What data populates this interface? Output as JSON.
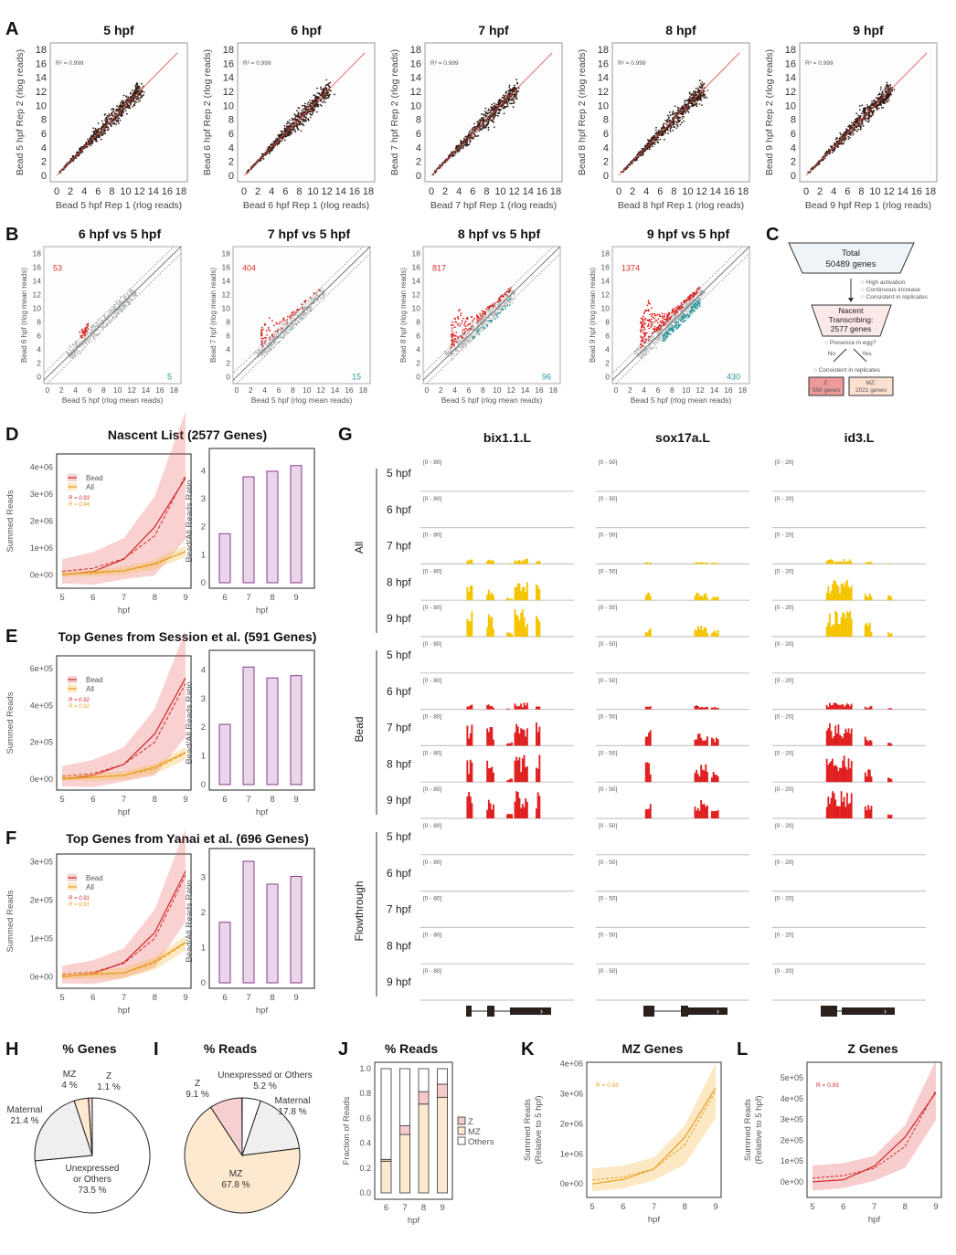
{
  "panels": {
    "A": "A",
    "B": "B",
    "C": "C",
    "D": "D",
    "E": "E",
    "F": "F",
    "G": "G",
    "H": "H",
    "I": "I",
    "J": "J",
    "K": "K",
    "L": "L"
  },
  "chart_data": [
    {
      "id": "A",
      "type": "scatter",
      "subplots": [
        {
          "title": "5 hpf",
          "xlabel": "Bead 5 hpf Rep 1 (rlog reads)",
          "ylabel": "Bead 5 hpf Rep 2 (rlog reads)",
          "annotation": "R² = 0.999"
        },
        {
          "title": "6 hpf",
          "xlabel": "Bead 6 hpf Rep 1 (rlog reads)",
          "ylabel": "Bead 6 hpf Rep 2 (rlog reads)",
          "annotation": "R² = 0.999"
        },
        {
          "title": "7 hpf",
          "xlabel": "Bead 7 hpf Rep 1 (rlog reads)",
          "ylabel": "Bead 7 hpf Rep 2 (rlog reads)",
          "annotation": "R² = 0.999"
        },
        {
          "title": "8 hpf",
          "xlabel": "Bead 8 hpf Rep 1 (rlog reads)",
          "ylabel": "Bead 8 hpf Rep 2 (rlog reads)",
          "annotation": "R² = 0.999"
        },
        {
          "title": "9 hpf",
          "xlabel": "Bead 9 hpf Rep 1 (rlog reads)",
          "ylabel": "Bead 9 hpf Rep 2 (rlog reads)",
          "annotation": "R² = 0.999"
        }
      ],
      "xlim": [
        0,
        18
      ],
      "ylim": [
        0,
        18
      ],
      "ticks": [
        "0",
        "2",
        "4",
        "6",
        "8",
        "10",
        "12",
        "14",
        "16",
        "18"
      ]
    },
    {
      "id": "B",
      "type": "scatter",
      "subplots": [
        {
          "title": "6 hpf vs 5 hpf",
          "xlabel": "Bead 5 hpf (rlog mean reads)",
          "ylabel": "Bead 6 hpf (rlog mean reads)",
          "up_count": "53",
          "down_count": "5",
          "spread": 0.15
        },
        {
          "title": "7 hpf vs 5 hpf",
          "xlabel": "Bead 5 hpf (rlog mean reads)",
          "ylabel": "Bead 7 hpf (rlog mean reads)",
          "up_count": "404",
          "down_count": "15",
          "spread": 0.5
        },
        {
          "title": "8 hpf vs 5 hpf",
          "xlabel": "Bead 5 hpf (rlog mean reads)",
          "ylabel": "Bead 8 hpf (rlog mean reads)",
          "up_count": "817",
          "down_count": "96",
          "spread": 0.75
        },
        {
          "title": "9 hpf vs 5 hpf",
          "xlabel": "Bead 5 hpf (rlog mean reads)",
          "ylabel": "Bead 9 hpf (rlog mean reads)",
          "up_count": "1374",
          "down_count": "430",
          "spread": 1.0
        }
      ],
      "xlim": [
        -0.5,
        19
      ],
      "ylim": [
        -1,
        19
      ],
      "ticks": [
        "0",
        "2",
        "4",
        "6",
        "8",
        "10",
        "12",
        "14",
        "16",
        "18"
      ]
    },
    {
      "id": "C",
      "type": "diagram",
      "total": "Total",
      "total_count": "50489 genes",
      "criteria": [
        "High activation",
        "Continuous increase",
        "Consistent in replicates"
      ],
      "nascent": [
        "Nacent",
        "Transcribing:",
        "2577 genes"
      ],
      "question": "Presence in egg?",
      "no": "No",
      "yes": "Yes",
      "consistent": "Consistent in replicates",
      "z": [
        "Z:",
        "556 genes"
      ],
      "mz": [
        "MZ:",
        "2021 genes"
      ]
    },
    {
      "id": "D",
      "type": "line",
      "title": "Nascent List (2577 Genes)",
      "x": [
        5,
        6,
        7,
        8,
        9
      ],
      "ylabel": "Summed Reads",
      "xlabel": "hpf",
      "yticks": [
        "0e+00",
        "1e+06",
        "2e+06",
        "3e+06",
        "4e+06"
      ],
      "ylim": [
        -500000,
        4500000
      ],
      "ytick_values": [
        0,
        1000000,
        2000000,
        3000000,
        4000000
      ],
      "series": [
        {
          "name": "Bead",
          "values": [
            0,
            120000,
            580000,
            1780000,
            3600000
          ],
          "fit": [
            130000,
            240000,
            600000,
            1450000,
            3700000
          ],
          "band": 450000,
          "r": "R = 0.93"
        },
        {
          "name": "All",
          "values": [
            0,
            100000,
            150000,
            420000,
            860000
          ],
          "fit": [
            30000,
            60000,
            150000,
            380000,
            880000
          ],
          "band": 90000,
          "r": "R = 0.94"
        }
      ],
      "ratio": {
        "categories": [
          "6",
          "7",
          "8",
          "9"
        ],
        "values": [
          1.75,
          3.78,
          3.98,
          4.18
        ],
        "ylabel": "Bead/All Reads Ratio",
        "xlabel": "hpf",
        "yticks": [
          "0",
          "1",
          "2",
          "3",
          "4"
        ],
        "ylim": [
          0,
          4.4
        ]
      }
    },
    {
      "id": "E",
      "type": "line",
      "title": "Top Genes from Session et al. (591 Genes)",
      "x": [
        5,
        6,
        7,
        8,
        9
      ],
      "ylabel": "Summed Reads",
      "xlabel": "hpf",
      "yticks": [
        "0e+00",
        "2e+05",
        "4e+05",
        "6e+05"
      ],
      "ylim": [
        -60000,
        670000
      ],
      "ytick_values": [
        0,
        200000,
        400000,
        600000
      ],
      "series": [
        {
          "name": "Bead",
          "values": [
            0,
            20000,
            80000,
            245000,
            550000
          ],
          "fit": [
            15000,
            30000,
            80000,
            200000,
            520000
          ],
          "band": 55000,
          "r": "R = 0.92"
        },
        {
          "name": "All",
          "values": [
            0,
            10000,
            20000,
            65000,
            145000
          ],
          "fit": [
            5000,
            10000,
            20000,
            55000,
            140000
          ],
          "band": 14000,
          "r": "R = 0.92"
        }
      ],
      "ratio": {
        "categories": [
          "6",
          "7",
          "8",
          "9"
        ],
        "values": [
          2.1,
          4.1,
          3.72,
          3.8
        ],
        "ylabel": "Bead/All Reads Ratio",
        "xlabel": "hpf",
        "yticks": [
          "0",
          "1",
          "2",
          "3",
          "4"
        ],
        "ylim": [
          0,
          4.3
        ]
      }
    },
    {
      "id": "F",
      "type": "line",
      "title": "Top Genes from Yanai et al. (696 Genes)",
      "x": [
        5,
        6,
        7,
        8,
        9
      ],
      "ylabel": "Summed Reads",
      "xlabel": "hpf",
      "yticks": [
        "0e+00",
        "1e+05",
        "2e+05",
        "3e+05"
      ],
      "ylim": [
        -30000,
        320000
      ],
      "ytick_values": [
        0,
        100000,
        200000,
        300000
      ],
      "series": [
        {
          "name": "Bead",
          "values": [
            0,
            8000,
            37000,
            115000,
            275000
          ],
          "fit": [
            6000,
            12000,
            35000,
            100000,
            265000
          ],
          "band": 23000,
          "r": "R = 0.91"
        },
        {
          "name": "All",
          "values": [
            0,
            7000,
            10000,
            40000,
            90000
          ],
          "fit": [
            2000,
            5000,
            10000,
            35000,
            88000
          ],
          "band": 8000,
          "r": "R = 0.91"
        }
      ],
      "ratio": {
        "categories": [
          "6",
          "7",
          "8",
          "9"
        ],
        "values": [
          1.72,
          3.45,
          2.8,
          3.02
        ],
        "ylabel": "Bead/All Reads Ratio",
        "xlabel": "hpf",
        "yticks": [
          "0",
          "1",
          "2",
          "3"
        ],
        "ylim": [
          0,
          3.5
        ]
      }
    },
    {
      "id": "G",
      "type": "tracks",
      "genes": [
        {
          "name": "bix1.1.L",
          "range": "[0 - 80]"
        },
        {
          "name": "sox17a.L",
          "range": "[0 - 50]"
        },
        {
          "name": "id3.L",
          "range": "[0 - 20]"
        }
      ],
      "groups": [
        {
          "name": "All",
          "color": "#f5c400",
          "rows": [
            "5 hpf",
            "6 hpf",
            "7 hpf",
            "8 hpf",
            "9 hpf"
          ],
          "level": [
            0,
            0,
            0.18,
            0.65,
            0.95
          ]
        },
        {
          "name": "Bead",
          "color": "#e02020",
          "rows": [
            "5 hpf",
            "6 hpf",
            "7 hpf",
            "8 hpf",
            "9 hpf"
          ],
          "level": [
            0,
            0.22,
            0.75,
            0.95,
            1.0
          ]
        },
        {
          "name": "Flowthrough",
          "color": "#3050c0",
          "rows": [
            "5 hpf",
            "6 hpf",
            "7 hpf",
            "8 hpf",
            "9 hpf"
          ],
          "level": [
            0,
            0,
            0,
            0,
            0
          ]
        }
      ]
    },
    {
      "id": "H",
      "type": "pie",
      "title": "% Genes",
      "slices": [
        {
          "label": "Unexpressed or Others",
          "value": 73.5,
          "text": "73.5 %",
          "color": "#ffffff"
        },
        {
          "label": "Maternal",
          "value": 21.4,
          "text": "21.4 %",
          "color": "#efefef"
        },
        {
          "label": "MZ",
          "value": 4.0,
          "text": "4 %",
          "color": "#fce9cf"
        },
        {
          "label": "Z",
          "value": 1.1,
          "text": "1.1 %",
          "color": "#f6d0d0"
        }
      ]
    },
    {
      "id": "I",
      "type": "pie",
      "title": "% Reads",
      "slices": [
        {
          "label": "Unexpressed or Others",
          "value": 5.2,
          "text": "5.2 %",
          "color": "#ffffff"
        },
        {
          "label": "Maternal",
          "value": 17.8,
          "text": "17.8 %",
          "color": "#efefef"
        },
        {
          "label": "MZ",
          "value": 67.8,
          "text": "67.8 %",
          "color": "#fce9cf"
        },
        {
          "label": "Z",
          "value": 9.1,
          "text": "9.1 %",
          "color": "#f6d0d0"
        }
      ]
    },
    {
      "id": "J",
      "type": "bar",
      "stacked": true,
      "title": "% Reads",
      "categories": [
        "6",
        "7",
        "8",
        "9"
      ],
      "series": [
        {
          "name": "MZ",
          "values": [
            0.255,
            0.47,
            0.715,
            0.77
          ],
          "color": "#fce9cf"
        },
        {
          "name": "Z",
          "values": [
            0.015,
            0.07,
            0.1,
            0.105
          ],
          "color": "#f6caca"
        },
        {
          "name": "Others",
          "values": [
            0.73,
            0.46,
            0.185,
            0.125
          ],
          "color": "#ffffff"
        }
      ],
      "legend": [
        "Z",
        "MZ",
        "Others"
      ],
      "ylabel": "Fraction of Reads",
      "xlabel": "hpf",
      "yticks": [
        "0.0",
        "0.2",
        "0.4",
        "0.6",
        "0.8",
        "1.0"
      ],
      "ylim": [
        0,
        1.05
      ]
    },
    {
      "id": "K",
      "type": "line",
      "title": "MZ Genes",
      "x": [
        5,
        6,
        7,
        8,
        9
      ],
      "ylabel": "Summed Reads",
      "ylabel2": "(Relative to 5 hpf)",
      "xlabel": "hpf",
      "yticks": [
        "0e+00",
        "1e+06",
        "2e+06",
        "3e+06",
        "4e+06"
      ],
      "ytick_values": [
        0,
        1000000,
        2000000,
        3000000,
        4000000
      ],
      "ylim": [
        -450000,
        4050000
      ],
      "series": [
        {
          "name": "MZ",
          "values": [
            0,
            150000,
            500000,
            1550000,
            3200000
          ],
          "fit": [
            130000,
            230000,
            500000,
            1300000,
            3100000
          ],
          "band": 380000,
          "color": "#e8a020",
          "r": "R = 0.93"
        }
      ]
    },
    {
      "id": "L",
      "type": "line",
      "title": "Z Genes",
      "x": [
        5,
        6,
        7,
        8,
        9
      ],
      "ylabel": "Summed Reads",
      "ylabel2": "(Relative to 5 hpf)",
      "xlabel": "hpf",
      "yticks": [
        "0e+00",
        "1e+05",
        "2e+05",
        "3e+05",
        "4e+05",
        "5e+05"
      ],
      "ytick_values": [
        0,
        100000,
        200000,
        300000,
        400000,
        500000
      ],
      "ylim": [
        -75000,
        575000
      ],
      "series": [
        {
          "name": "Z",
          "values": [
            0,
            10000,
            75000,
            215000,
            430000
          ],
          "fit": [
            18000,
            30000,
            65000,
            170000,
            440000
          ],
          "band": 60000,
          "color": "#d02828",
          "r": "R = 0.93"
        }
      ]
    }
  ]
}
